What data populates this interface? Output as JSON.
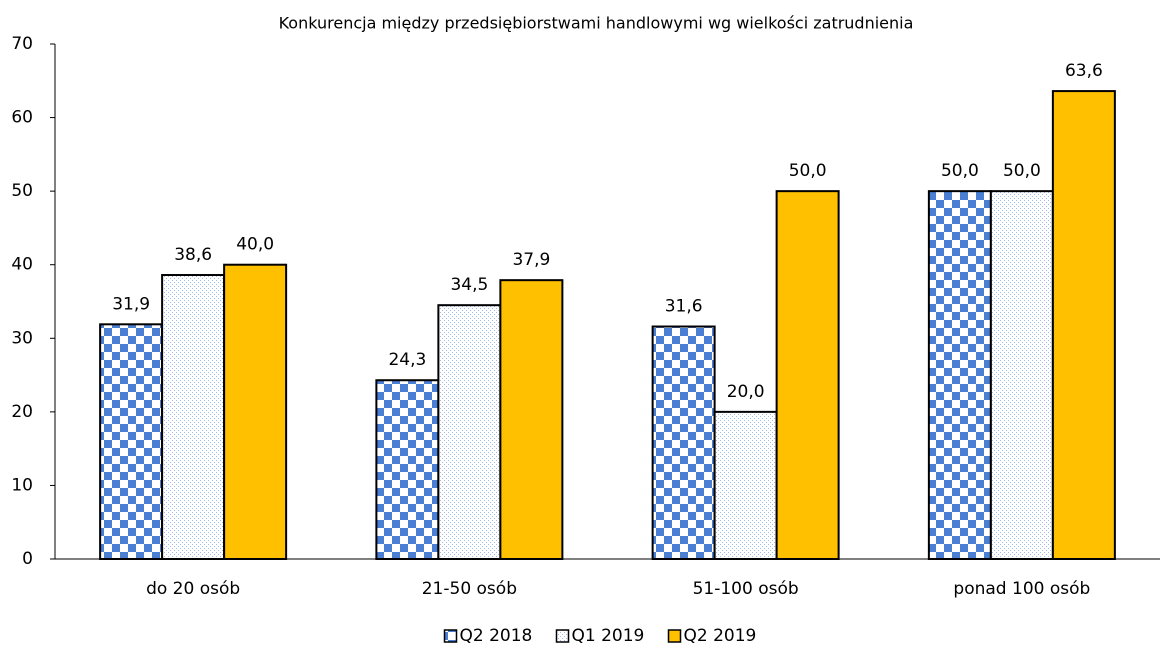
{
  "chart_data": {
    "type": "bar",
    "title": "Konkurencja między przedsiębiorstwami handlowymi wg wielkości zatrudnienia",
    "categories": [
      "do 20 osób",
      "21-50 osób",
      "51-100 osób",
      "ponad 100 osób"
    ],
    "series": [
      {
        "name": "Q2 2018",
        "color": "#4a7fd4",
        "pattern": "checker",
        "values": [
          31.9,
          24.3,
          31.6,
          50.0
        ],
        "value_labels": [
          "31,9",
          "24,3",
          "31,6",
          "50,0"
        ]
      },
      {
        "name": "Q1 2019",
        "color": "#9dbbe6",
        "pattern": "dots",
        "values": [
          38.6,
          34.5,
          20.0,
          50.0
        ],
        "value_labels": [
          "38,6",
          "34,5",
          "20,0",
          "50,0"
        ]
      },
      {
        "name": "Q2 2019",
        "color": "#ffc000",
        "pattern": "solid",
        "values": [
          40.0,
          37.9,
          50.0,
          63.6
        ],
        "value_labels": [
          "40,0",
          "37,9",
          "50,0",
          "63,6"
        ]
      }
    ],
    "ylim": [
      0,
      70
    ],
    "yticks": [
      0,
      10,
      20,
      30,
      40,
      50,
      60,
      70
    ],
    "grid": false,
    "legend": "bottom"
  }
}
